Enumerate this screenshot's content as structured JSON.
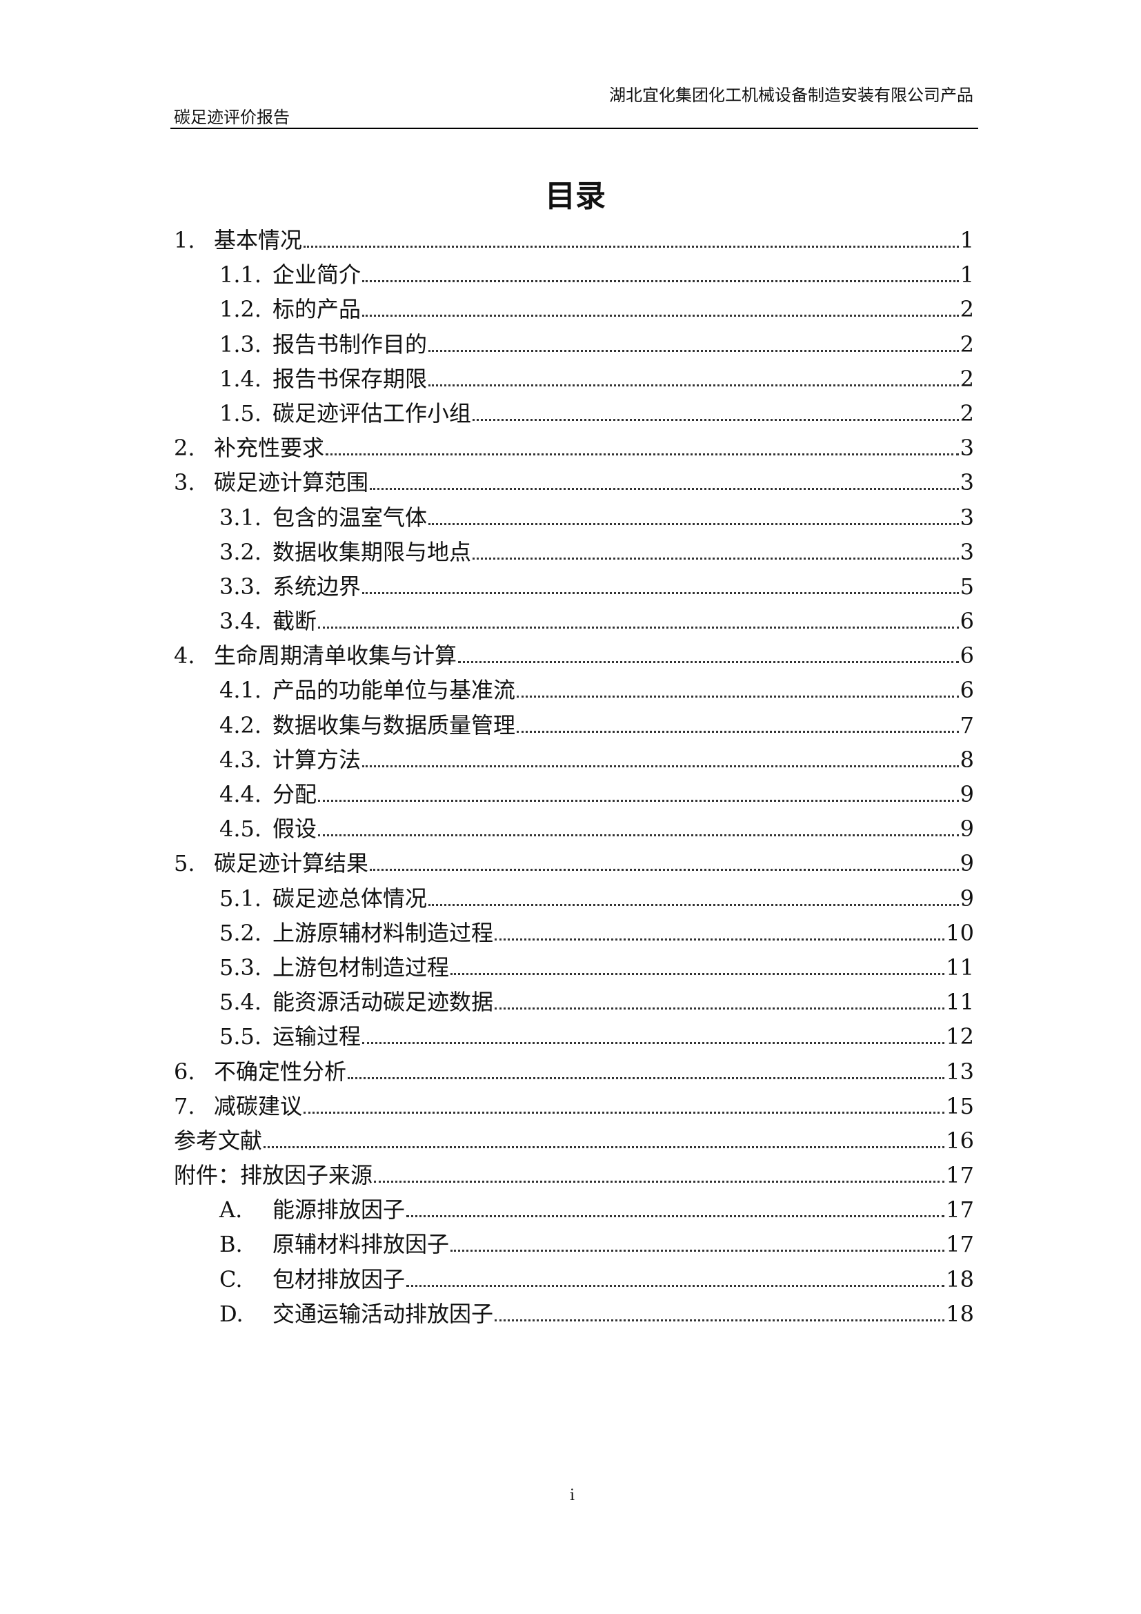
{
  "header": {
    "company": "湖北宜化集团化工机械设备制造安装有限公司产品",
    "report": "碳足迹评价报告"
  },
  "title": "目录",
  "toc": [
    {
      "level": 1,
      "num": "1.",
      "text": "基本情况",
      "page": "1"
    },
    {
      "level": 2,
      "num": "1.1.",
      "text": "企业简介",
      "page": "1"
    },
    {
      "level": 2,
      "num": "1.2.",
      "text": "标的产品",
      "page": "2"
    },
    {
      "level": 2,
      "num": "1.3.",
      "text": "报告书制作目的",
      "page": "2"
    },
    {
      "level": 2,
      "num": "1.4.",
      "text": "报告书保存期限",
      "page": "2"
    },
    {
      "level": 2,
      "num": "1.5.",
      "text": "碳足迹评估工作小组",
      "page": "2"
    },
    {
      "level": 1,
      "num": "2.",
      "text": "补充性要求",
      "page": "3"
    },
    {
      "level": 1,
      "num": "3.",
      "text": "碳足迹计算范围",
      "page": "3"
    },
    {
      "level": 2,
      "num": "3.1.",
      "text": "包含的温室气体",
      "page": "3"
    },
    {
      "level": 2,
      "num": "3.2.",
      "text": "数据收集期限与地点",
      "page": "3"
    },
    {
      "level": 2,
      "num": "3.3.",
      "text": "系统边界",
      "page": "5"
    },
    {
      "level": 2,
      "num": "3.4.",
      "text": "截断",
      "page": "6"
    },
    {
      "level": 1,
      "num": "4.",
      "text": "生命周期清单收集与计算",
      "page": "6"
    },
    {
      "level": 2,
      "num": "4.1.",
      "text": "产品的功能单位与基准流",
      "page": "6"
    },
    {
      "level": 2,
      "num": "4.2.",
      "text": "数据收集与数据质量管理",
      "page": "7"
    },
    {
      "level": 2,
      "num": "4.3.",
      "text": "计算方法",
      "page": "8"
    },
    {
      "level": 2,
      "num": "4.4.",
      "text": "分配",
      "page": "9"
    },
    {
      "level": 2,
      "num": "4.5.",
      "text": "假设",
      "page": "9"
    },
    {
      "level": 1,
      "num": "5.",
      "text": "碳足迹计算结果",
      "page": "9"
    },
    {
      "level": 2,
      "num": "5.1.",
      "text": "碳足迹总体情况",
      "page": "9"
    },
    {
      "level": 2,
      "num": "5.2.",
      "text": "上游原辅材料制造过程",
      "page": "10"
    },
    {
      "level": 2,
      "num": "5.3.",
      "text": "上游包材制造过程",
      "page": "11"
    },
    {
      "level": 2,
      "num": "5.4.",
      "text": "能资源活动碳足迹数据",
      "page": "11"
    },
    {
      "level": 2,
      "num": "5.5.",
      "text": "运输过程",
      "page": "12"
    },
    {
      "level": 1,
      "num": "6.",
      "text": "不确定性分析",
      "page": "13"
    },
    {
      "level": 1,
      "num": "7.",
      "text": "减碳建议",
      "page": "15"
    },
    {
      "level": 0,
      "num": "",
      "text": "参考文献",
      "page": "16"
    },
    {
      "level": 0,
      "num": "",
      "text": "附件：排放因子来源",
      "page": "17"
    },
    {
      "level": 2,
      "num": "A.",
      "text": "能源排放因子",
      "page": "17"
    },
    {
      "level": 2,
      "num": "B.",
      "text": "原辅材料排放因子",
      "page": "17"
    },
    {
      "level": 2,
      "num": "C.",
      "text": "包材排放因子",
      "page": "18"
    },
    {
      "level": 2,
      "num": "D.",
      "text": "交通运输活动排放因子",
      "page": "18"
    }
  ],
  "footer": {
    "page_number": "i"
  }
}
